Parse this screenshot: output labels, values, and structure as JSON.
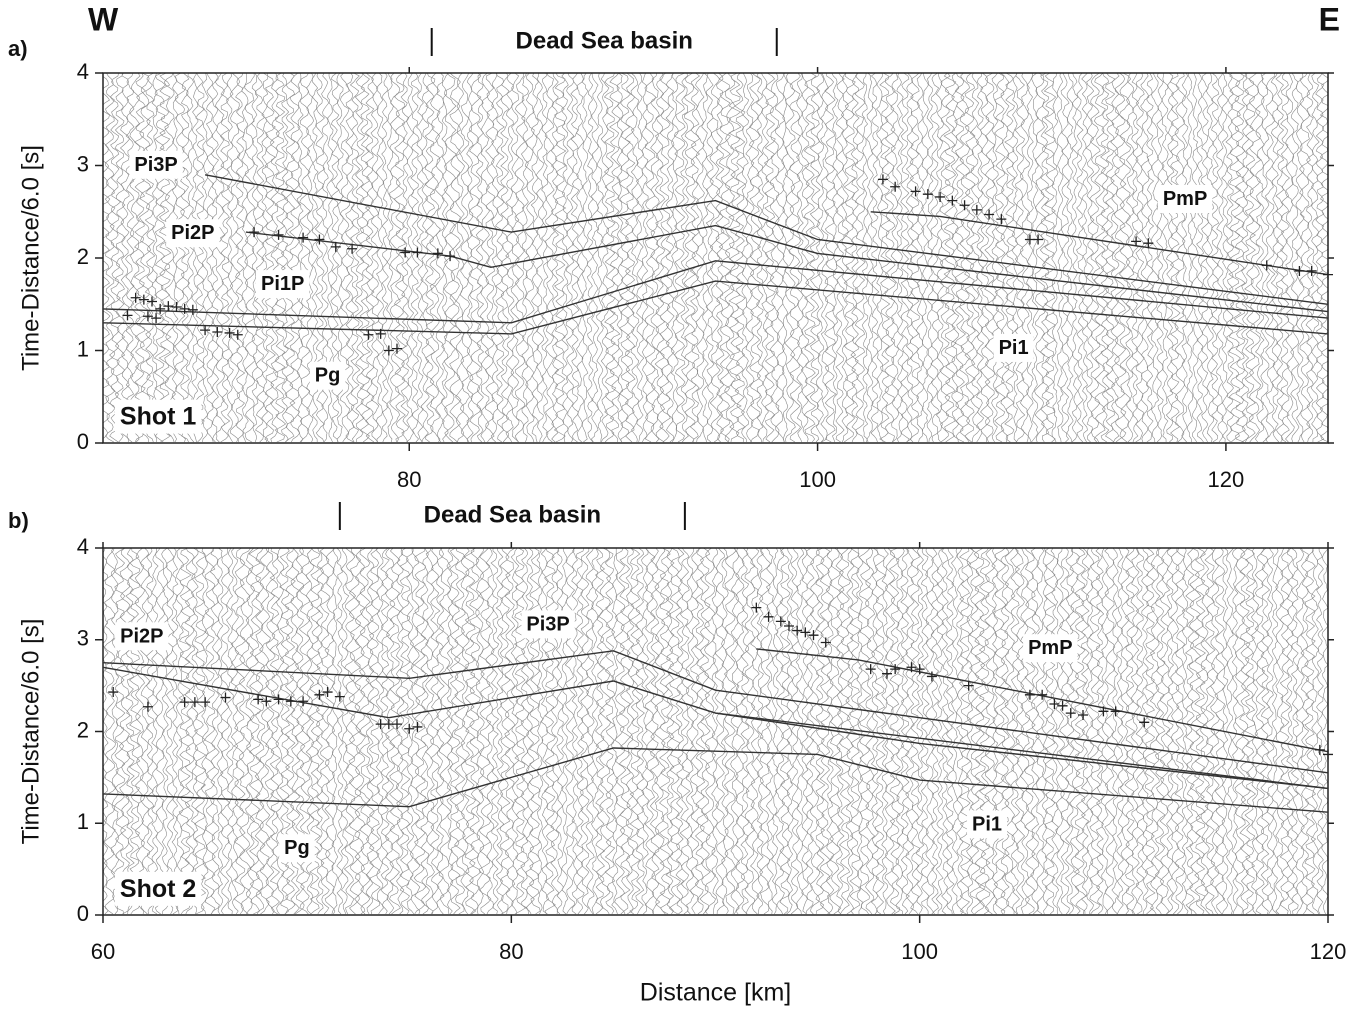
{
  "chart_data": [
    {
      "type": "line",
      "panel_label": "a)",
      "left_label": "W",
      "right_label": "E",
      "ylabel": "Time-Distance/6.0 [s]",
      "xlim": [
        65,
        125
      ],
      "xticks": [
        80,
        100,
        120
      ],
      "ylim": [
        0,
        4
      ],
      "yticks": [
        0,
        1,
        2,
        3,
        4
      ],
      "basin": {
        "text": "Dead Sea basin",
        "range": [
          81.1,
          98
        ]
      },
      "shot_label": {
        "text": "Shot 1",
        "x": 67.7,
        "y": 0.27
      },
      "phase_labels": [
        {
          "text": "Pi3P",
          "x": 67.6,
          "y": 3.0
        },
        {
          "text": "Pi2P",
          "x": 69.4,
          "y": 2.26
        },
        {
          "text": "Pi1P",
          "x": 73.8,
          "y": 1.71
        },
        {
          "text": "Pg",
          "x": 76,
          "y": 0.72
        },
        {
          "text": "Pi1",
          "x": 109.6,
          "y": 1.02
        },
        {
          "text": "PmP",
          "x": 118,
          "y": 2.63
        }
      ],
      "series": [
        {
          "color": "#333333",
          "x": [
            70,
            85,
            95,
            100,
            125
          ],
          "values": [
            2.9,
            2.28,
            2.62,
            2.2,
            1.5
          ]
        },
        {
          "color": "#333333",
          "x": [
            72,
            82,
            84,
            95,
            100,
            125
          ],
          "values": [
            2.28,
            2.02,
            1.9,
            2.35,
            2.05,
            1.42
          ]
        },
        {
          "color": "#333333",
          "x": [
            65,
            85,
            95,
            125
          ],
          "values": [
            1.45,
            1.3,
            1.97,
            1.35
          ]
        },
        {
          "color": "#333333",
          "x": [
            65,
            85,
            95,
            125
          ],
          "values": [
            1.3,
            1.18,
            1.75,
            1.18
          ]
        },
        {
          "color": "#333333",
          "x": [
            102.6,
            106,
            125
          ],
          "values": [
            2.5,
            2.45,
            1.82
          ]
        }
      ],
      "picks": {
        "color": "#222222",
        "x": [
          66.2,
          66.6,
          67,
          67.2,
          67.4,
          67.6,
          67.8,
          68.2,
          68.6,
          69,
          69.4,
          70,
          70.6,
          71.2,
          71.6,
          72.4,
          73.6,
          74.8,
          75.6,
          76.4,
          77.2,
          78,
          78.6,
          79,
          79.4,
          79.8,
          80.4,
          81.4,
          82,
          103.2,
          103.8,
          104.8,
          105.4,
          106,
          106.6,
          107.2,
          107.8,
          108.4,
          109,
          110.4,
          110.8,
          115.6,
          116.2,
          122,
          123.6,
          124.2,
          125
        ],
        "values": [
          1.38,
          1.57,
          1.55,
          1.37,
          1.53,
          1.35,
          1.45,
          1.48,
          1.47,
          1.45,
          1.44,
          1.22,
          1.2,
          1.19,
          1.17,
          2.28,
          2.25,
          2.22,
          2.2,
          2.12,
          2.1,
          1.17,
          1.18,
          1.0,
          1.02,
          2.06,
          2.06,
          2.05,
          2.02,
          2.85,
          2.77,
          2.72,
          2.69,
          2.66,
          2.62,
          2.57,
          2.52,
          2.47,
          2.42,
          2.2,
          2.2,
          2.18,
          2.16,
          1.92,
          1.86,
          1.86,
          1.82
        ]
      }
    },
    {
      "type": "line",
      "panel_label": "b)",
      "ylabel": "Time-Distance/6.0 [s]",
      "xlabel": "Distance [km]",
      "xlim": [
        60,
        120
      ],
      "xticks": [
        60,
        80,
        100,
        120
      ],
      "ylim": [
        0,
        4
      ],
      "yticks": [
        0,
        1,
        2,
        3,
        4
      ],
      "basin": {
        "text": "Dead Sea basin",
        "range": [
          71.6,
          88.5
        ]
      },
      "shot_label": {
        "text": "Shot 2",
        "x": 62.7,
        "y": 0.27
      },
      "phase_labels": [
        {
          "text": "Pi2P",
          "x": 61.9,
          "y": 3.03
        },
        {
          "text": "Pi3P",
          "x": 81.8,
          "y": 3.16
        },
        {
          "text": "PmP",
          "x": 106.4,
          "y": 2.9
        },
        {
          "text": "Pg",
          "x": 69.5,
          "y": 0.72
        },
        {
          "text": "Pi1",
          "x": 103.3,
          "y": 0.98
        }
      ],
      "series": [
        {
          "color": "#333333",
          "x": [
            60,
            75,
            85,
            90,
            120
          ],
          "values": [
            2.75,
            2.58,
            2.88,
            2.45,
            1.55
          ]
        },
        {
          "color": "#333333",
          "x": [
            60,
            74,
            85,
            90,
            120
          ],
          "values": [
            2.7,
            2.15,
            2.55,
            2.2,
            1.38
          ]
        },
        {
          "color": "#333333",
          "x": [
            60,
            75,
            85,
            95,
            100,
            120
          ],
          "values": [
            1.32,
            1.18,
            1.82,
            1.75,
            1.47,
            1.12
          ]
        },
        {
          "color": "#333333",
          "x": [
            90,
            100,
            120
          ],
          "values": [
            2.2,
            1.87,
            1.38
          ]
        },
        {
          "color": "#333333",
          "x": [
            92,
            97,
            120
          ],
          "values": [
            2.9,
            2.78,
            1.78
          ]
        }
      ],
      "picks": {
        "color": "#222222",
        "x": [
          60.5,
          62.2,
          64,
          64.5,
          65,
          66,
          67.6,
          68,
          68.6,
          69.2,
          69.8,
          70.6,
          71,
          71.6,
          73.6,
          74,
          74.4,
          75,
          75.4,
          92,
          92.6,
          93.2,
          93.6,
          94,
          94.4,
          94.8,
          95.4,
          97.6,
          98.4,
          98.8,
          99.6,
          100,
          100.6,
          102.4,
          105.4,
          106,
          106.6,
          107,
          107.4,
          108,
          109,
          109.6,
          111,
          119.6,
          120
        ],
        "values": [
          2.43,
          2.27,
          2.32,
          2.32,
          2.32,
          2.37,
          2.35,
          2.33,
          2.35,
          2.33,
          2.33,
          2.4,
          2.43,
          2.38,
          2.08,
          2.08,
          2.08,
          2.03,
          2.05,
          3.35,
          3.25,
          3.2,
          3.15,
          3.1,
          3.08,
          3.05,
          2.97,
          2.68,
          2.63,
          2.68,
          2.7,
          2.68,
          2.6,
          2.5,
          2.4,
          2.4,
          2.3,
          2.28,
          2.2,
          2.18,
          2.22,
          2.22,
          2.1,
          1.8,
          1.75
        ]
      }
    }
  ]
}
